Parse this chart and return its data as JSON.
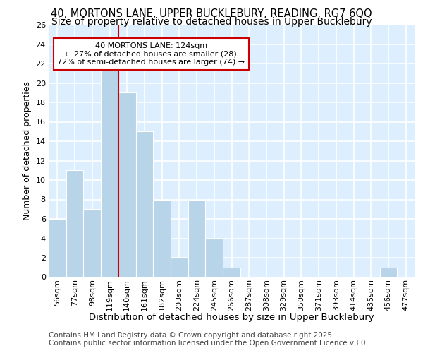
{
  "title1": "40, MORTONS LANE, UPPER BUCKLEBURY, READING, RG7 6QQ",
  "title2": "Size of property relative to detached houses in Upper Bucklebury",
  "xlabel": "Distribution of detached houses by size in Upper Bucklebury",
  "ylabel": "Number of detached properties",
  "bin_labels": [
    "56sqm",
    "77sqm",
    "98sqm",
    "119sqm",
    "140sqm",
    "161sqm",
    "182sqm",
    "203sqm",
    "224sqm",
    "245sqm",
    "266sqm",
    "287sqm",
    "308sqm",
    "329sqm",
    "350sqm",
    "371sqm",
    "393sqm",
    "414sqm",
    "435sqm",
    "456sqm",
    "477sqm"
  ],
  "bar_values": [
    6,
    11,
    7,
    22,
    19,
    15,
    8,
    2,
    8,
    4,
    1,
    0,
    0,
    0,
    0,
    0,
    0,
    0,
    0,
    1,
    0
  ],
  "bar_color": "#b8d4e8",
  "bar_edge_color": "#b8d4e8",
  "vline_x": 3.5,
  "vline_color": "#cc0000",
  "annotation_text": "40 MORTONS LANE: 124sqm\n← 27% of detached houses are smaller (28)\n72% of semi-detached houses are larger (74) →",
  "annotation_box_color": "#ffffff",
  "annotation_box_edge": "#cc0000",
  "ylim": [
    0,
    26
  ],
  "yticks": [
    0,
    2,
    4,
    6,
    8,
    10,
    12,
    14,
    16,
    18,
    20,
    22,
    24,
    26
  ],
  "background_color": "#ddeeff",
  "grid_color": "#ffffff",
  "fig_background": "#ffffff",
  "footer_line1": "Contains HM Land Registry data © Crown copyright and database right 2025.",
  "footer_line2": "Contains public sector information licensed under the Open Government Licence v3.0.",
  "title_fontsize": 10.5,
  "subtitle_fontsize": 10,
  "ylabel_fontsize": 9,
  "xlabel_fontsize": 9.5,
  "tick_fontsize": 8,
  "footer_fontsize": 7.5
}
